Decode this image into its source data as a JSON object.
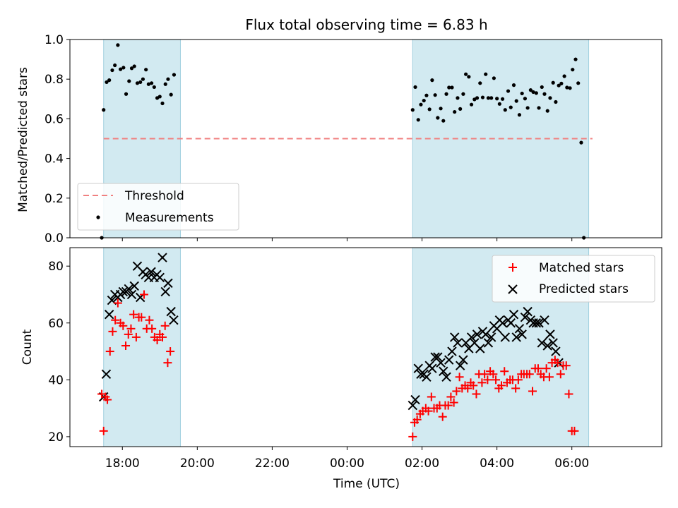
{
  "chart_data": [
    {
      "type": "scatter",
      "title": "Flux total observing time = 6.83 h",
      "ylabel": "Matched/Predicted stars",
      "ylim": [
        0,
        1.0
      ],
      "yticks": [
        "0.0",
        "0.2",
        "0.4",
        "0.6",
        "0.8",
        "1.0"
      ],
      "x_axis_unit": "hours since 00:00 UTC (ticks shown as clock time, day boundary at 00:00)",
      "xlim": [
        -7.4,
        8.4
      ],
      "threshold": {
        "name": "Threshold",
        "value": 0.5,
        "color": "#f08080",
        "x_range": [
          -6.5,
          6.55
        ]
      },
      "shaded_regions": [
        [
          -6.5,
          -4.45
        ],
        [
          1.75,
          6.45
        ]
      ],
      "shade_color": "#add8e6",
      "legend": {
        "position": "lower-left",
        "entries": [
          "Threshold",
          "Measurements"
        ]
      },
      "series": [
        {
          "name": "Measurements",
          "marker": "dot",
          "color": "#000000",
          "points": [
            [
              -6.55,
              0.0
            ],
            [
              -6.5,
              0.645
            ],
            [
              -6.42,
              0.785
            ],
            [
              -6.35,
              0.795
            ],
            [
              -6.27,
              0.845
            ],
            [
              -6.2,
              0.87
            ],
            [
              -6.12,
              0.972
            ],
            [
              -6.05,
              0.85
            ],
            [
              -5.97,
              0.858
            ],
            [
              -5.9,
              0.725
            ],
            [
              -5.82,
              0.79
            ],
            [
              -5.75,
              0.855
            ],
            [
              -5.68,
              0.865
            ],
            [
              -5.6,
              0.78
            ],
            [
              -5.52,
              0.785
            ],
            [
              -5.45,
              0.8
            ],
            [
              -5.37,
              0.848
            ],
            [
              -5.3,
              0.775
            ],
            [
              -5.22,
              0.78
            ],
            [
              -5.15,
              0.76
            ],
            [
              -5.07,
              0.705
            ],
            [
              -5.0,
              0.712
            ],
            [
              -4.93,
              0.678
            ],
            [
              -4.85,
              0.775
            ],
            [
              -4.78,
              0.8
            ],
            [
              -4.7,
              0.722
            ],
            [
              -4.62,
              0.822
            ],
            [
              1.75,
              0.645
            ],
            [
              1.82,
              0.76
            ],
            [
              1.9,
              0.595
            ],
            [
              1.97,
              0.672
            ],
            [
              2.05,
              0.692
            ],
            [
              2.12,
              0.718
            ],
            [
              2.2,
              0.648
            ],
            [
              2.27,
              0.795
            ],
            [
              2.35,
              0.72
            ],
            [
              2.42,
              0.605
            ],
            [
              2.5,
              0.652
            ],
            [
              2.57,
              0.59
            ],
            [
              2.65,
              0.725
            ],
            [
              2.72,
              0.758
            ],
            [
              2.8,
              0.758
            ],
            [
              2.87,
              0.635
            ],
            [
              2.95,
              0.705
            ],
            [
              3.02,
              0.65
            ],
            [
              3.1,
              0.725
            ],
            [
              3.17,
              0.825
            ],
            [
              3.25,
              0.812
            ],
            [
              3.32,
              0.672
            ],
            [
              3.4,
              0.698
            ],
            [
              3.47,
              0.705
            ],
            [
              3.55,
              0.78
            ],
            [
              3.62,
              0.708
            ],
            [
              3.7,
              0.825
            ],
            [
              3.77,
              0.705
            ],
            [
              3.85,
              0.705
            ],
            [
              3.92,
              0.805
            ],
            [
              4.0,
              0.702
            ],
            [
              4.07,
              0.675
            ],
            [
              4.15,
              0.7
            ],
            [
              4.22,
              0.645
            ],
            [
              4.3,
              0.74
            ],
            [
              4.37,
              0.658
            ],
            [
              4.45,
              0.77
            ],
            [
              4.52,
              0.69
            ],
            [
              4.6,
              0.62
            ],
            [
              4.67,
              0.728
            ],
            [
              4.75,
              0.702
            ],
            [
              4.82,
              0.655
            ],
            [
              4.9,
              0.745
            ],
            [
              4.97,
              0.735
            ],
            [
              5.05,
              0.73
            ],
            [
              5.12,
              0.655
            ],
            [
              5.2,
              0.76
            ],
            [
              5.27,
              0.725
            ],
            [
              5.35,
              0.64
            ],
            [
              5.42,
              0.705
            ],
            [
              5.5,
              0.782
            ],
            [
              5.57,
              0.685
            ],
            [
              5.65,
              0.768
            ],
            [
              5.72,
              0.778
            ],
            [
              5.8,
              0.815
            ],
            [
              5.87,
              0.758
            ],
            [
              5.95,
              0.755
            ],
            [
              6.02,
              0.848
            ],
            [
              6.1,
              0.9
            ],
            [
              6.17,
              0.78
            ],
            [
              6.25,
              0.48
            ],
            [
              6.32,
              0.0
            ]
          ]
        }
      ]
    },
    {
      "type": "scatter",
      "xlabel": "Time (UTC)",
      "ylabel": "Count",
      "ylim": [
        16.5,
        86.5
      ],
      "yticks": [
        "20",
        "40",
        "60",
        "80"
      ],
      "xticks": [
        "18:00",
        "20:00",
        "22:00",
        "00:00",
        "02:00",
        "04:00",
        "06:00"
      ],
      "xlim": [
        -7.4,
        8.4
      ],
      "shaded_regions": [
        [
          -6.5,
          -4.45
        ],
        [
          1.75,
          6.45
        ]
      ],
      "shade_color": "#add8e6",
      "legend": {
        "position": "upper-right",
        "entries": [
          "Matched stars",
          "Predicted stars"
        ]
      },
      "series": [
        {
          "name": "Matched stars",
          "marker": "plus",
          "color": "#ff0000",
          "points": [
            [
              -6.55,
              35
            ],
            [
              -6.5,
              22
            ],
            [
              -6.45,
              34
            ],
            [
              -6.4,
              33
            ],
            [
              -6.33,
              50
            ],
            [
              -6.26,
              57
            ],
            [
              -6.19,
              61
            ],
            [
              -6.12,
              67
            ],
            [
              -6.05,
              60
            ],
            [
              -5.98,
              59
            ],
            [
              -5.91,
              52
            ],
            [
              -5.84,
              56
            ],
            [
              -5.77,
              58
            ],
            [
              -5.7,
              63
            ],
            [
              -5.63,
              55
            ],
            [
              -5.56,
              62
            ],
            [
              -5.49,
              62
            ],
            [
              -5.42,
              70
            ],
            [
              -5.35,
              58
            ],
            [
              -5.28,
              61
            ],
            [
              -5.21,
              58
            ],
            [
              -5.14,
              55
            ],
            [
              -5.07,
              54
            ],
            [
              -5.0,
              56
            ],
            [
              -4.93,
              55
            ],
            [
              -4.86,
              59
            ],
            [
              -4.79,
              46
            ],
            [
              -4.72,
              50
            ],
            [
              1.75,
              20
            ],
            [
              1.8,
              25
            ],
            [
              1.87,
              26
            ],
            [
              1.95,
              28
            ],
            [
              2.02,
              29
            ],
            [
              2.1,
              30
            ],
            [
              2.17,
              29
            ],
            [
              2.25,
              34
            ],
            [
              2.32,
              30
            ],
            [
              2.4,
              30
            ],
            [
              2.47,
              31
            ],
            [
              2.55,
              27
            ],
            [
              2.62,
              31
            ],
            [
              2.7,
              31
            ],
            [
              2.77,
              34
            ],
            [
              2.85,
              32
            ],
            [
              2.92,
              36
            ],
            [
              3.0,
              41
            ],
            [
              3.07,
              37
            ],
            [
              3.15,
              38
            ],
            [
              3.22,
              37
            ],
            [
              3.3,
              39
            ],
            [
              3.37,
              38
            ],
            [
              3.45,
              35
            ],
            [
              3.52,
              42
            ],
            [
              3.6,
              39
            ],
            [
              3.67,
              42
            ],
            [
              3.75,
              40
            ],
            [
              3.82,
              43
            ],
            [
              3.9,
              42
            ],
            [
              3.97,
              40
            ],
            [
              4.05,
              37
            ],
            [
              4.12,
              38
            ],
            [
              4.2,
              43
            ],
            [
              4.27,
              39
            ],
            [
              4.35,
              40
            ],
            [
              4.42,
              40
            ],
            [
              4.5,
              37
            ],
            [
              4.57,
              40
            ],
            [
              4.65,
              42
            ],
            [
              4.72,
              42
            ],
            [
              4.8,
              42
            ],
            [
              4.87,
              42
            ],
            [
              4.95,
              36
            ],
            [
              5.02,
              44
            ],
            [
              5.1,
              44
            ],
            [
              5.17,
              42
            ],
            [
              5.25,
              41
            ],
            [
              5.32,
              44
            ],
            [
              5.4,
              41
            ],
            [
              5.47,
              46
            ],
            [
              5.55,
              47
            ],
            [
              5.62,
              46
            ],
            [
              5.7,
              42
            ],
            [
              5.77,
              45
            ],
            [
              5.85,
              45
            ],
            [
              5.92,
              35
            ],
            [
              6.0,
              22
            ],
            [
              6.07,
              22
            ]
          ]
        },
        {
          "name": "Predicted stars",
          "marker": "x",
          "color": "#000000",
          "points": [
            [
              -6.5,
              34
            ],
            [
              -6.43,
              42
            ],
            [
              -6.35,
              63
            ],
            [
              -6.28,
              68
            ],
            [
              -6.2,
              70
            ],
            [
              -6.12,
              69
            ],
            [
              -6.05,
              70
            ],
            [
              -5.98,
              71
            ],
            [
              -5.9,
              71
            ],
            [
              -5.83,
              72
            ],
            [
              -5.75,
              70
            ],
            [
              -5.68,
              73
            ],
            [
              -5.6,
              80
            ],
            [
              -5.52,
              69
            ],
            [
              -5.45,
              78
            ],
            [
              -5.38,
              77
            ],
            [
              -5.3,
              76
            ],
            [
              -5.23,
              78
            ],
            [
              -5.15,
              76
            ],
            [
              -5.08,
              77
            ],
            [
              -5.0,
              76
            ],
            [
              -4.93,
              83
            ],
            [
              -4.85,
              71
            ],
            [
              -4.78,
              74
            ],
            [
              -4.7,
              64
            ],
            [
              -4.63,
              61
            ],
            [
              1.75,
              31
            ],
            [
              1.82,
              33
            ],
            [
              1.9,
              44
            ],
            [
              1.97,
              42
            ],
            [
              2.05,
              42
            ],
            [
              2.12,
              41
            ],
            [
              2.2,
              45
            ],
            [
              2.27,
              44
            ],
            [
              2.35,
              48
            ],
            [
              2.42,
              48
            ],
            [
              2.5,
              46
            ],
            [
              2.57,
              43
            ],
            [
              2.65,
              41
            ],
            [
              2.72,
              47
            ],
            [
              2.8,
              50
            ],
            [
              2.87,
              55
            ],
            [
              2.95,
              53
            ],
            [
              3.02,
              45
            ],
            [
              3.1,
              47
            ],
            [
              3.17,
              53
            ],
            [
              3.25,
              51
            ],
            [
              3.32,
              55
            ],
            [
              3.4,
              53
            ],
            [
              3.47,
              56
            ],
            [
              3.55,
              51
            ],
            [
              3.62,
              57
            ],
            [
              3.7,
              56
            ],
            [
              3.77,
              53
            ],
            [
              3.85,
              55
            ],
            [
              3.92,
              59
            ],
            [
              4.0,
              58
            ],
            [
              4.07,
              61
            ],
            [
              4.15,
              60
            ],
            [
              4.22,
              55
            ],
            [
              4.3,
              61
            ],
            [
              4.37,
              60
            ],
            [
              4.45,
              63
            ],
            [
              4.52,
              55
            ],
            [
              4.6,
              58
            ],
            [
              4.67,
              56
            ],
            [
              4.75,
              62
            ],
            [
              4.82,
              64
            ],
            [
              4.9,
              61
            ],
            [
              4.97,
              60
            ],
            [
              5.05,
              60
            ],
            [
              5.12,
              60
            ],
            [
              5.2,
              53
            ],
            [
              5.27,
              61
            ],
            [
              5.35,
              52
            ],
            [
              5.42,
              56
            ],
            [
              5.5,
              53
            ],
            [
              5.57,
              50
            ],
            [
              5.65,
              46
            ]
          ]
        }
      ]
    }
  ]
}
